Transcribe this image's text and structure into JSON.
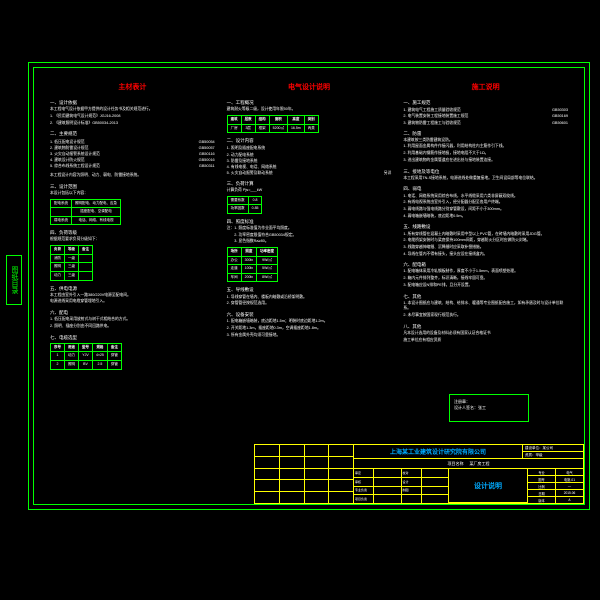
{
  "colors": {
    "background": "#000000",
    "frame": "#00ff00",
    "titleblock_border": "#ffff00",
    "header_text": "#ff0000",
    "body_text": "#ffffff",
    "company_text": "#00aaff"
  },
  "side_tab": "图纸目录",
  "columns": [
    {
      "header": "主材表计",
      "sections": [
        {
          "title": "一、设计依据",
          "paras": [
            "本工程电气设计依据甲方提供的设计任务书及相关规范进行。",
            "1. 《民用建筑电气设计规范》JGJ16-2008",
            "2. 《建筑照明设计标准》GB50034-2013"
          ]
        },
        {
          "title": "二、主要规范",
          "specs": [
            [
              "1. 低压配电设计规范",
              "GB50054"
            ],
            [
              "2. 建筑物防雷设计规范",
              "GB50057"
            ],
            [
              "3. 火灾自动报警系统设计规范",
              "GB50116"
            ],
            [
              "4. 建筑设计防火规范",
              "GB50016"
            ],
            [
              "5. 综合布线系统工程设计规范",
              "GB50311"
            ]
          ]
        },
        {
          "paras": [
            "本工程设计内容为照明、动力、弱电、防雷接地系统。"
          ]
        },
        {
          "title": "三、设计范围",
          "paras": [
            "本设计包括以下内容："
          ],
          "table": {
            "rows": [
              [
                "配电系统",
                "照明配电、动力配电、应急"
              ],
              [
                "",
                "插座配电、空调配电"
              ],
              [
                "弱电系统",
                "电话、网络、有线电视"
              ]
            ]
          }
        },
        {
          "title": "四、负荷等级",
          "paras": [
            "根据规范要求负荷分级如下："
          ],
          "table": {
            "headers": [
              "负荷",
              "等级",
              "备注"
            ],
            "rows": [
              [
                "消防",
                "一级",
                ""
              ],
              [
                "照明",
                "三级",
                ""
              ],
              [
                "动力",
                "三级",
                ""
              ]
            ]
          }
        },
        {
          "title": "五、供电电源",
          "paras": [
            "本工程由室外引入一路380/220V电源至配电间。",
            "电源进线采用电缆穿管埋地引入。"
          ]
        },
        {
          "title": "六、配电",
          "paras": [
            "1. 低压配电采用放射式与树干式相结合的方式。",
            "2. 照明、插座分别由不同回路供电。"
          ]
        },
        {
          "title": "七、电缆选型",
          "table": {
            "headers": [
              "序号",
              "用途",
              "型号",
              "规格",
              "备注"
            ],
            "rows": [
              [
                "1",
                "动力",
                "YJV",
                "4×25",
                "穿管"
              ],
              [
                "2",
                "照明",
                "BV",
                "2.5",
                "穿管"
              ]
            ]
          }
        }
      ]
    },
    {
      "header": "电气设计说明",
      "sections": [
        {
          "title": "一、工程概况",
          "table": {
            "headers": [
              "建筑",
              "层数",
              "结构",
              "面积",
              "高度",
              "类别"
            ],
            "rows": [
              [
                "厂房",
                "3层",
                "框架",
                "5200㎡",
                "16.5m",
                "丙类"
              ]
            ]
          },
          "paras": [
            "建筑耐火等级二级，设计使用年限50年。"
          ]
        },
        {
          "title": "二、设计内容",
          "specs": [
            [
              "1. 照明及插座配电系统",
              ""
            ],
            [
              "2. 动力配电系统",
              ""
            ],
            [
              "3. 防雷及接地系统",
              ""
            ],
            [
              "4. 有线电视、电话、网络系统",
              ""
            ],
            [
              "5. 火灾自动报警及联动系统",
              "另详"
            ]
          ]
        },
        {
          "title": "三、负荷计算",
          "paras": [
            "计算负荷 Pjs=___kW"
          ],
          "table": {
            "rows": [
              [
                "需要系数",
                "0.8"
              ],
              [
                "功率因数",
                "0.85"
              ]
            ]
          }
        },
        {
          "title": "四、照度标准",
          "table": {
            "headers": [
              "场所",
              "照度",
              "功率密度"
            ],
            "rows": [
              [
                "办公",
                "300lx",
                "9W/㎡"
              ],
              [
                "走道",
                "100lx",
                "5W/㎡"
              ],
              [
                "车间",
                "200lx",
                "8W/㎡"
              ]
            ]
          },
          "paras": [
            "注：1. 照度标准值为作业面平均照度。",
            "　　2. 功率密度限值符合GB50034规定。",
            "　　3. 显色指数Ra≥80。"
          ]
        },
        {
          "title": "五、导线敷设",
          "paras": [
            "1. 导线穿管在墙内、楼板内暗敷或沿桥架明敷。",
            "2. 穿管管径按规范选用。"
          ]
        },
        {
          "title": "六、设备安装",
          "paras": [
            "1. 配电箱嵌墙暗装，底边距地1.5m；明装时底边距地1.2m。",
            "2. 开关距地1.3m，插座距地0.3m，空调插座距地1.8m。",
            "3. 所有金属外壳均须可靠接地。"
          ]
        }
      ]
    },
    {
      "header": "施工说明",
      "sections": [
        {
          "title": "一、施工规范",
          "specs": [
            [
              "1. 建筑电气工程施工质量验收规范",
              "GB50303"
            ],
            [
              "2. 电气装置安装工程接地装置施工规范",
              "GB50169"
            ],
            [
              "3. 建筑物防雷工程施工与验收规范",
              "GB50601"
            ]
          ]
        },
        {
          "title": "二、防雷",
          "paras": [
            "本建筑按三类防雷建筑设防。",
            "1. 利用屋面金属构件作接闪器，利用结构柱内主筋作引下线。",
            "2. 利用基础内钢筋作接地极，接地电阻不大于1Ω。",
            "3. 进出建筑物的金属管道应在进出处与接地装置连接。"
          ]
        },
        {
          "title": "三、接地及等电位",
          "paras": [
            "本工程采用TN-S接地系统，电源进线处做重复接地。卫生间设局部等电位联结。"
          ]
        },
        {
          "title": "四、弱电",
          "paras": [
            "1. 电话、网络系统采用综合布线，水平线缆采用六类非屏蔽双绞线。",
            "2. 有线电视系统由室外引入，经分配器分配至各用户终端。",
            "3. 弱电线路与强电线路分别穿管敷设，间距不小于300mm。",
            "4. 弱电箱嵌墙暗装，底边距地0.5m。"
          ]
        },
        {
          "title": "五、线路敷设",
          "paras": [
            "1. 所有穿线管在混凝土内暗敷时采用中型以上PVC管，在砖墙内暗敷时采用JDG管。",
            "2. 电缆桥架安装时与梁底保持100mm间距，穿越防火分区时应做防火封堵。",
            "3. 线路穿越伸缩缝、沉降缝时应采取补偿措施。",
            "4. 导线在管内不得有接头，接头应设在接线盒内。"
          ]
        },
        {
          "title": "六、配电箱",
          "paras": [
            "1. 配电箱体采用冷轧钢板制作，厚度不小于1.5mm，表面喷塑处理。",
            "2. 箱内元件排列整齐，标识清晰，接线牢固可靠。",
            "3. 配电箱应设N排和PE排，且分开设置。"
          ]
        },
        {
          "title": "七、其他",
          "paras": [
            "1. 本设计图纸应与建筑、结构、给排水、暖通等专业图纸配合施工，如有矛盾及时与设计单位联系。",
            "2. 未尽事宜按国家现行规范执行。"
          ]
        }
      ],
      "extra_header": "八、其他",
      "extra": [
        "凡本设计选用的设备及材料必须有国家认证合格证书",
        "施工单位应有相应资质"
      ]
    }
  ],
  "stamp": {
    "l1": "注册章：",
    "l2": "",
    "l3": "设计人签名：张工"
  },
  "titleblock": {
    "company": "上海某工业建筑设计研究院有限公司",
    "side_r1": "建设单位：某公司",
    "side_r2": "资质：甲级",
    "project_label": "项目名称",
    "project": "某厂房工程",
    "signs": [
      [
        "审定",
        "",
        "校对",
        ""
      ],
      [
        "审核",
        "",
        "设计",
        ""
      ],
      [
        "专业负责",
        "",
        "制图",
        ""
      ],
      [
        "项目负责",
        "",
        "",
        ""
      ]
    ],
    "drawing_title": "设计说明",
    "meta": [
      [
        "专业",
        "电气"
      ],
      [
        "图号",
        "电施-01"
      ],
      [
        "比例",
        "—"
      ],
      [
        "日期",
        "2015.06"
      ],
      [
        "版本",
        "A"
      ]
    ]
  }
}
